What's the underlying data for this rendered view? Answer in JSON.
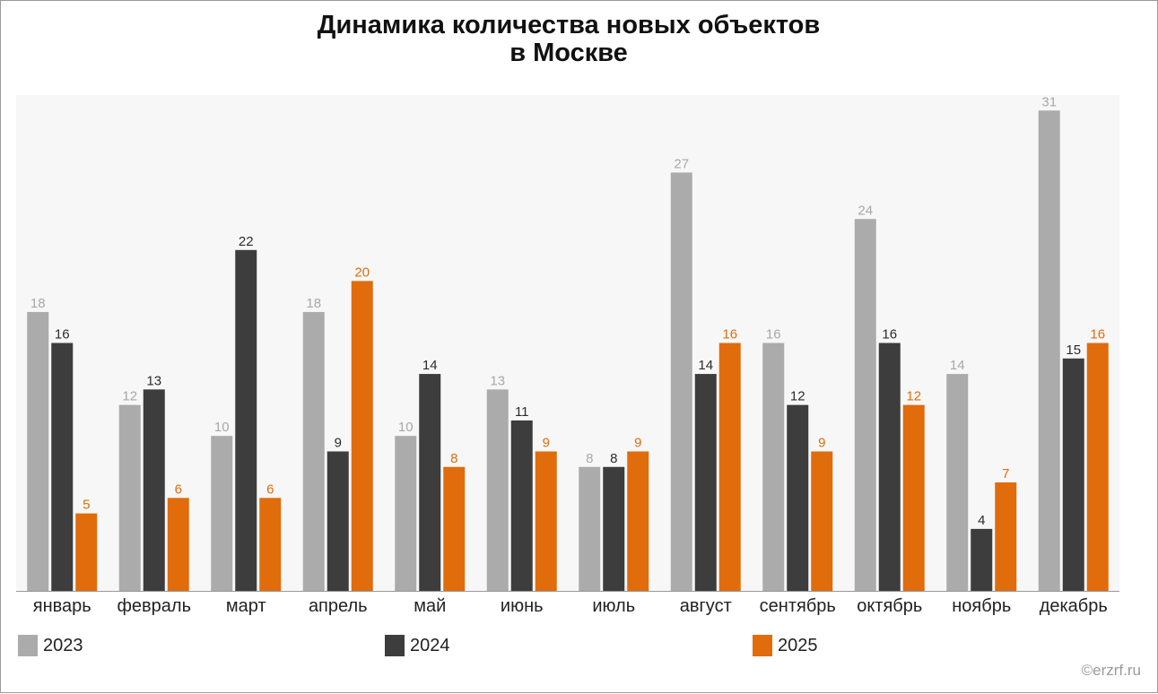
{
  "chart_data": {
    "type": "bar",
    "title_line1": "Динамика количества новых объектов",
    "title_line2": "в Москве",
    "categories": [
      "январь",
      "февраль",
      "март",
      "апрель",
      "май",
      "июнь",
      "июль",
      "август",
      "сентябрь",
      "октябрь",
      "ноябрь",
      "декабрь"
    ],
    "series": [
      {
        "name": "2023",
        "color": "#ababab",
        "label_color": "#a8a8a8",
        "values": [
          18,
          12,
          10,
          18,
          10,
          13,
          8,
          27,
          16,
          24,
          14,
          31
        ]
      },
      {
        "name": "2024",
        "color": "#3d3d3d",
        "label_color": "#2b2b2b",
        "values": [
          16,
          13,
          22,
          9,
          14,
          11,
          8,
          14,
          12,
          16,
          4,
          15
        ]
      },
      {
        "name": "2025",
        "color": "#e06c0c",
        "label_color": "#e06c0c",
        "values": [
          5,
          6,
          6,
          20,
          8,
          9,
          9,
          16,
          9,
          12,
          7,
          16
        ]
      }
    ],
    "ylim": [
      0,
      32
    ],
    "legend_position": "bottom",
    "grid": false,
    "plot_background": "#f7f7f7"
  },
  "source": "©erzrf.ru"
}
